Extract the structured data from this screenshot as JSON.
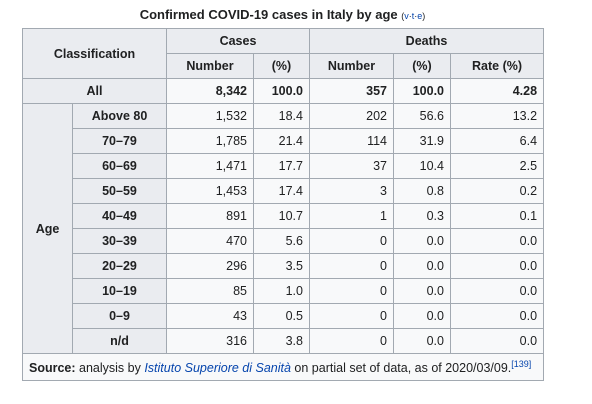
{
  "title": "Confirmed COVID-19 cases in Italy by age",
  "navbar": {
    "open": "(",
    "links": [
      "v",
      "t",
      "e"
    ],
    "separator": "·",
    "close": ")"
  },
  "table": {
    "header": {
      "classification": "Classification",
      "cases": "Cases",
      "deaths": "Deaths",
      "columns": [
        "Number",
        "(%)",
        "Number",
        "(%)",
        "Rate (%)"
      ]
    },
    "all_row": {
      "label": "All",
      "cells": [
        "8,342",
        "100.0",
        "357",
        "100.0",
        "4.28"
      ]
    },
    "group_label": "Age",
    "rows": [
      {
        "label": "Above 80",
        "cells": [
          "1,532",
          "18.4",
          "202",
          "56.6",
          "13.2"
        ]
      },
      {
        "label": "70–79",
        "cells": [
          "1,785",
          "21.4",
          "114",
          "31.9",
          "6.4"
        ]
      },
      {
        "label": "60–69",
        "cells": [
          "1,471",
          "17.7",
          "37",
          "10.4",
          "2.5"
        ]
      },
      {
        "label": "50–59",
        "cells": [
          "1,453",
          "17.4",
          "3",
          "0.8",
          "0.2"
        ]
      },
      {
        "label": "40–49",
        "cells": [
          "891",
          "10.7",
          "1",
          "0.3",
          "0.1"
        ]
      },
      {
        "label": "30–39",
        "cells": [
          "470",
          "5.6",
          "0",
          "0.0",
          "0.0"
        ]
      },
      {
        "label": "20–29",
        "cells": [
          "296",
          "3.5",
          "0",
          "0.0",
          "0.0"
        ]
      },
      {
        "label": "10–19",
        "cells": [
          "85",
          "1.0",
          "0",
          "0.0",
          "0.0"
        ]
      },
      {
        "label": "0–9",
        "cells": [
          "43",
          "0.5",
          "0",
          "0.0",
          "0.0"
        ]
      },
      {
        "label": "n/d",
        "cells": [
          "316",
          "3.8",
          "0",
          "0.0",
          "0.0"
        ]
      }
    ]
  },
  "source": {
    "lead": "Source:",
    "before": " analysis by ",
    "link": "Istituto Superiore di Sanità",
    "after": " on partial set of data, as of 2020/03/09.",
    "ref": "[139]"
  }
}
